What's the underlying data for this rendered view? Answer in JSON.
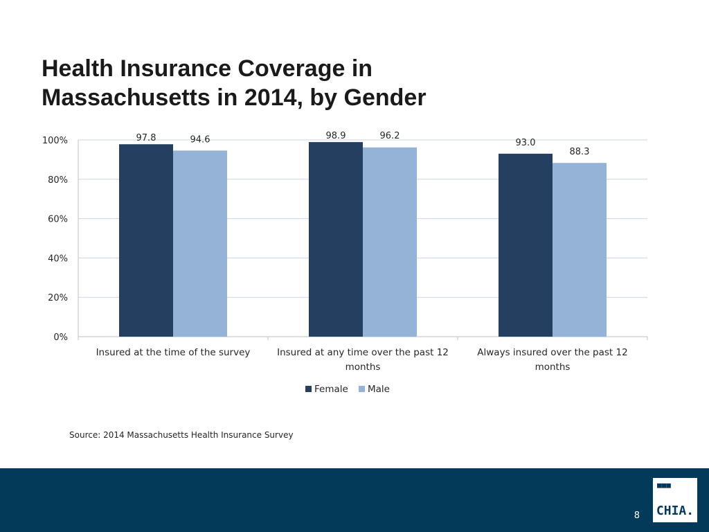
{
  "slide": {
    "title_line1": "Health Insurance Coverage in",
    "title_line2": "Massachusetts in 2014, by Gender",
    "source": "Source:  2014 Massachusetts Health Insurance Survey",
    "page_number": "8",
    "logo_text": "CHIA.",
    "logo_dots": "■■■"
  },
  "colors": {
    "female": "#243f60",
    "male": "#95b3d7",
    "gridline": "#c9d3e6",
    "footer": "#033a5a"
  },
  "chart_data": {
    "type": "bar",
    "title": "",
    "xlabel": "",
    "ylabel": "",
    "categories": [
      "Insured at the time of the survey",
      "Insured at any time over the past 12 months",
      "Always insured over the past 12 months"
    ],
    "category_lines": [
      [
        "Insured at the time of the survey"
      ],
      [
        "Insured at any time over the past 12",
        "months"
      ],
      [
        "Always insured over the past 12",
        "months"
      ]
    ],
    "series": [
      {
        "name": "Female",
        "values": [
          97.8,
          98.9,
          93.0
        ],
        "labels": [
          "97.8",
          "98.9",
          "93.0"
        ]
      },
      {
        "name": "Male",
        "values": [
          94.6,
          96.2,
          88.3
        ],
        "labels": [
          "94.6",
          "96.2",
          "88.3"
        ]
      }
    ],
    "ylim": [
      0,
      100
    ],
    "yticks": [
      0,
      20,
      40,
      60,
      80,
      100
    ],
    "ytick_labels": [
      "0%",
      "20%",
      "40%",
      "60%",
      "80%",
      "100%"
    ],
    "grid": true,
    "legend": "bottom"
  }
}
